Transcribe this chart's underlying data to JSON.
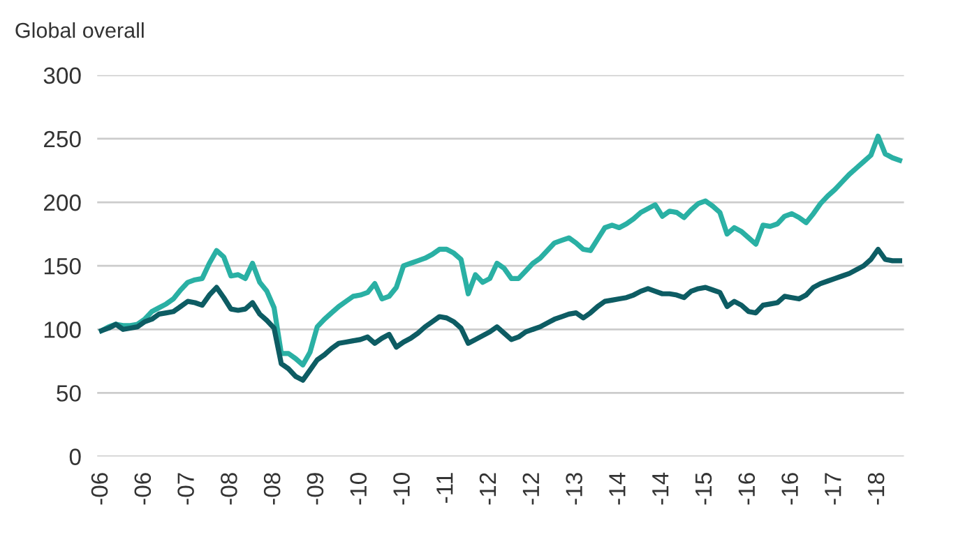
{
  "chart_data": {
    "type": "line",
    "ylabel": "Global overall",
    "categories": [
      "-06",
      null,
      null,
      null,
      null,
      null,
      "-06",
      null,
      null,
      null,
      null,
      null,
      "-07",
      null,
      null,
      null,
      null,
      null,
      "-08",
      null,
      null,
      null,
      null,
      null,
      "-08",
      null,
      null,
      null,
      null,
      null,
      "-09",
      null,
      null,
      null,
      null,
      null,
      "-10",
      null,
      null,
      null,
      null,
      null,
      "-10",
      null,
      null,
      null,
      null,
      null,
      "-11",
      null,
      null,
      null,
      null,
      null,
      "-12",
      null,
      null,
      null,
      null,
      null,
      "-12",
      null,
      null,
      null,
      null,
      null,
      "-13",
      null,
      null,
      null,
      null,
      null,
      "-14",
      null,
      null,
      null,
      null,
      null,
      "-14",
      null,
      null,
      null,
      null,
      null,
      "-15",
      null,
      null,
      null,
      null,
      null,
      "-16",
      null,
      null,
      null,
      null,
      null,
      "-16",
      null,
      null,
      null,
      null,
      null,
      "-17",
      null,
      null,
      null,
      null,
      null,
      "-18",
      null,
      null,
      null
    ],
    "ylim": [
      0,
      300
    ],
    "yticks": [
      0,
      50,
      100,
      150,
      200,
      250,
      300
    ],
    "grid": "y",
    "legend": false,
    "marker": "none",
    "line_style": "solid",
    "series": [
      {
        "color": "#2ab0a4",
        "values": [
          99,
          102,
          104,
          103,
          103,
          104,
          108,
          114,
          117,
          120,
          124,
          131,
          137,
          139,
          140,
          152,
          162,
          157,
          142,
          143,
          140,
          152,
          137,
          130,
          117,
          81,
          81,
          77,
          72,
          82,
          102,
          108,
          113,
          118,
          122,
          126,
          127,
          129,
          136,
          124,
          126,
          133,
          150,
          152,
          154,
          156,
          159,
          163,
          163,
          160,
          155,
          128,
          143,
          137,
          140,
          152,
          148,
          140,
          140,
          146,
          152,
          156,
          162,
          168,
          170,
          172,
          168,
          163,
          162,
          171,
          180,
          182,
          180,
          183,
          187,
          192,
          195,
          198,
          189,
          193,
          192,
          188,
          194,
          199,
          201,
          197,
          192,
          175,
          180,
          177,
          172,
          167,
          182,
          181,
          183,
          189,
          191,
          188,
          184,
          191,
          199,
          205,
          210,
          216,
          222,
          227,
          232,
          237,
          252,
          238,
          235,
          233
        ]
      },
      {
        "color": "#0d5c63",
        "values": [
          99,
          101,
          104,
          100,
          101,
          102,
          106,
          108,
          112,
          113,
          114,
          118,
          122,
          121,
          119,
          127,
          133,
          125,
          116,
          115,
          116,
          121,
          112,
          107,
          101,
          73,
          69,
          63,
          60,
          68,
          76,
          80,
          85,
          89,
          90,
          91,
          92,
          94,
          89,
          93,
          96,
          86,
          90,
          93,
          97,
          102,
          106,
          110,
          109,
          106,
          101,
          89,
          92,
          95,
          98,
          102,
          97,
          92,
          94,
          98,
          100,
          102,
          105,
          108,
          110,
          112,
          113,
          109,
          113,
          118,
          122,
          123,
          124,
          125,
          127,
          130,
          132,
          130,
          128,
          128,
          127,
          125,
          130,
          132,
          133,
          131,
          129,
          118,
          122,
          119,
          114,
          113,
          119,
          120,
          121,
          126,
          125,
          124,
          127,
          133,
          136,
          138,
          140,
          142,
          144,
          147,
          150,
          155,
          163,
          155,
          154,
          154
        ]
      }
    ]
  }
}
